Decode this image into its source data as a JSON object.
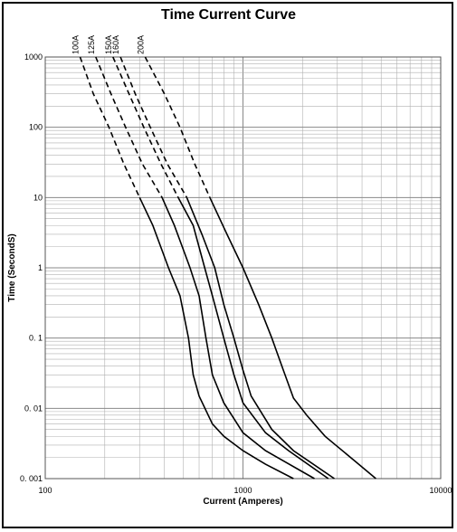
{
  "chart_data": {
    "type": "line",
    "title": "Time Current Curve",
    "xlabel": "Current  (Amperes)",
    "ylabel": "Time  (SecondS)",
    "x_scale": "log",
    "y_scale": "log",
    "xlim": [
      100,
      10000
    ],
    "ylim": [
      0.001,
      1000
    ],
    "x_ticks": [
      100,
      1000,
      10000
    ],
    "x_tick_labels": [
      "100",
      "1000",
      "10000"
    ],
    "y_ticks": [
      1000,
      100,
      10,
      1,
      0.1,
      0.01,
      0.001
    ],
    "y_tick_labels": [
      "1000",
      "100",
      "10",
      "1",
      "0. 1",
      "0. 01",
      "0. 001"
    ],
    "grid": true,
    "line_color": "#000000",
    "grid_color": "#b0b0b0",
    "note": "",
    "series": [
      {
        "name": "100A",
        "dashed": [
          [
            150,
            1000
          ],
          [
            175,
            300
          ],
          [
            210,
            100
          ],
          [
            250,
            30
          ],
          [
            300,
            10
          ]
        ],
        "solid": [
          [
            300,
            10
          ],
          [
            350,
            4
          ],
          [
            420,
            1
          ],
          [
            480,
            0.4
          ],
          [
            530,
            0.1
          ],
          [
            560,
            0.03
          ],
          [
            600,
            0.015
          ],
          [
            700,
            0.006
          ],
          [
            800,
            0.004
          ],
          [
            1000,
            0.0025
          ],
          [
            1300,
            0.0016
          ],
          [
            1800,
            0.001
          ]
        ]
      },
      {
        "name": "125A",
        "dashed": [
          [
            180,
            1000
          ],
          [
            215,
            300
          ],
          [
            255,
            100
          ],
          [
            310,
            30
          ],
          [
            390,
            10
          ]
        ],
        "solid": [
          [
            390,
            10
          ],
          [
            450,
            4
          ],
          [
            540,
            1
          ],
          [
            600,
            0.4
          ],
          [
            650,
            0.1
          ],
          [
            700,
            0.03
          ],
          [
            800,
            0.012
          ],
          [
            1000,
            0.0045
          ],
          [
            1300,
            0.0025
          ],
          [
            2300,
            0.001
          ]
        ]
      },
      {
        "name": "150A",
        "dashed": [
          [
            220,
            1000
          ],
          [
            265,
            300
          ],
          [
            315,
            100
          ],
          [
            385,
            30
          ],
          [
            470,
            10
          ]
        ],
        "solid": [
          [
            470,
            10
          ],
          [
            560,
            4
          ],
          [
            640,
            1
          ],
          [
            700,
            0.4
          ],
          [
            800,
            0.1
          ],
          [
            900,
            0.03
          ],
          [
            1000,
            0.012
          ],
          [
            1300,
            0.0045
          ],
          [
            1700,
            0.0025
          ],
          [
            2700,
            0.001
          ]
        ]
      },
      {
        "name": "160A",
        "dashed": [
          [
            240,
            1000
          ],
          [
            285,
            300
          ],
          [
            340,
            100
          ],
          [
            415,
            30
          ],
          [
            520,
            10
          ]
        ],
        "solid": [
          [
            520,
            10
          ],
          [
            620,
            3
          ],
          [
            720,
            1
          ],
          [
            800,
            0.3
          ],
          [
            900,
            0.1
          ],
          [
            1000,
            0.035
          ],
          [
            1100,
            0.015
          ],
          [
            1400,
            0.005
          ],
          [
            1800,
            0.0025
          ],
          [
            2900,
            0.001
          ]
        ]
      },
      {
        "name": "200A",
        "dashed": [
          [
            320,
            1000
          ],
          [
            400,
            300
          ],
          [
            480,
            100
          ],
          [
            570,
            30
          ],
          [
            680,
            10
          ]
        ],
        "solid": [
          [
            680,
            10
          ],
          [
            830,
            3
          ],
          [
            1000,
            1
          ],
          [
            1200,
            0.3
          ],
          [
            1400,
            0.1
          ],
          [
            1600,
            0.035
          ],
          [
            1800,
            0.014
          ],
          [
            2100,
            0.008
          ],
          [
            2600,
            0.004
          ],
          [
            3500,
            0.002
          ],
          [
            4700,
            0.001
          ]
        ]
      }
    ]
  }
}
